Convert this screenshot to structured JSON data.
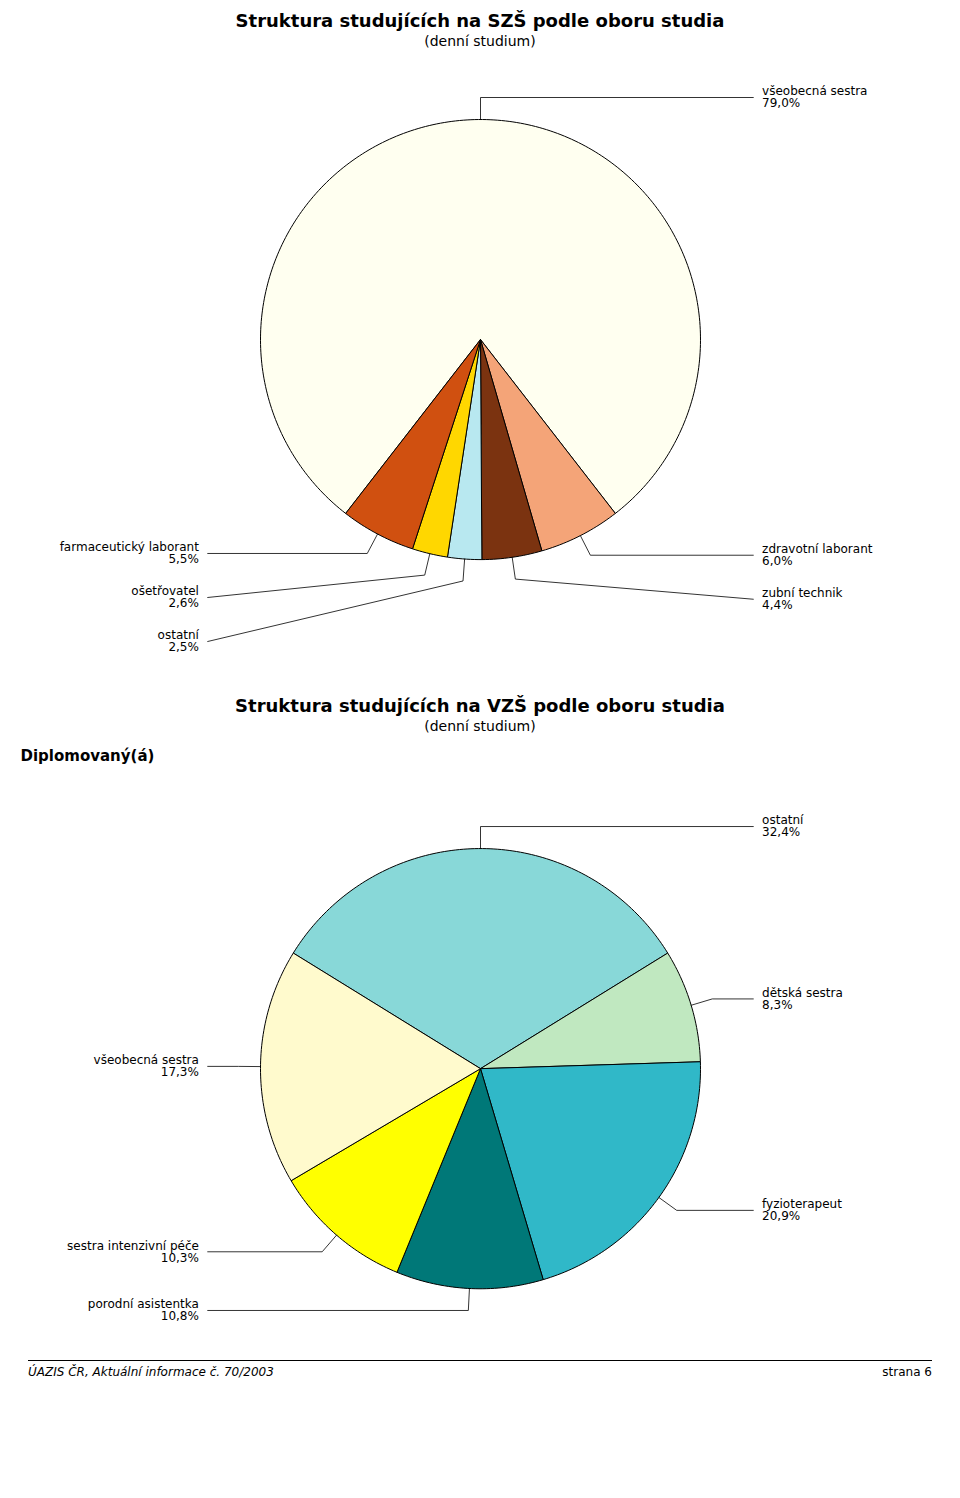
{
  "chart_data": [
    {
      "type": "pie",
      "title": "Struktura studujících na SZŠ podle oboru studia",
      "subtitle": "(denní studium)",
      "categories": [
        "všeobecná sestra",
        "zdravotní laborant",
        "zubní technik",
        "ostatní",
        "ošetřovatel",
        "farmaceutický laborant"
      ],
      "values": [
        79.0,
        6.0,
        4.4,
        2.5,
        2.6,
        5.5
      ],
      "value_labels": [
        "79,0%",
        "6,0%",
        "4,4%",
        "2,5%",
        "2,6%",
        "5,5%"
      ],
      "colors": [
        "#FFFFF0",
        "#F4A478",
        "#7B3310",
        "#B8E8F0",
        "#FFD700",
        "#D05010"
      ],
      "data_labels": true
    },
    {
      "type": "pie",
      "title": "Struktura studujících na VZŠ podle oboru studia",
      "subtitle": "(denní studium)",
      "annotations": [
        "Diplomovaný(á)"
      ],
      "categories": [
        "ostatní",
        "dětská sestra",
        "fyzioterapeut",
        "porodní asistentka",
        "sestra intenzivní péče",
        "všeobecná sestra"
      ],
      "values": [
        32.4,
        8.3,
        20.9,
        10.8,
        10.3,
        17.3
      ],
      "value_labels": [
        "32,4%",
        "8,3%",
        "20,9%",
        "10,8%",
        "10,3%",
        "17,3%"
      ],
      "colors": [
        "#88D8D8",
        "#C0E8C0",
        "#30B8C8",
        "#007878",
        "#FFFF00",
        "#FFFACD"
      ],
      "data_labels": true
    }
  ],
  "footer": {
    "left": "ÚAZIS ČR, Aktuální informace č. 70/2003",
    "right": "strana 6"
  }
}
